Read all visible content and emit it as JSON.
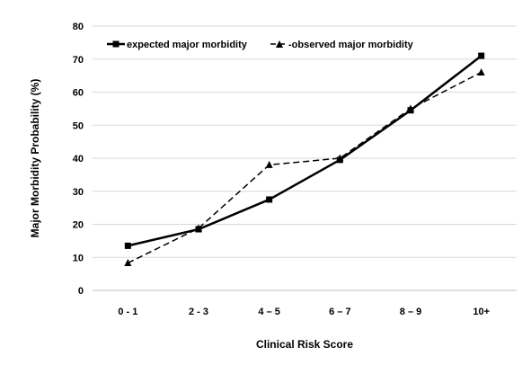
{
  "chart_data": {
    "type": "line",
    "categories": [
      "0 - 1",
      "2 - 3",
      "4 – 5",
      "6 – 7",
      "8 – 9",
      "10+"
    ],
    "series": [
      {
        "name": "expected major morbidity",
        "values": [
          13.5,
          18.5,
          27.5,
          39.5,
          54.5,
          71
        ],
        "style": "solid",
        "marker": "square",
        "color": "#000000"
      },
      {
        "name": "-observed major morbidity",
        "values": [
          8.3,
          18.8,
          38,
          40,
          55,
          66
        ],
        "style": "dashed",
        "marker": "triangle",
        "color": "#000000"
      }
    ],
    "title": "",
    "xlabel": "Clinical Risk Score",
    "ylabel": "Major Morbidity Probability (%)",
    "ylim": [
      0,
      80
    ],
    "yticks": [
      0,
      10,
      20,
      30,
      40,
      50,
      60,
      70,
      80
    ],
    "grid": "horizontal",
    "legend": "top"
  }
}
